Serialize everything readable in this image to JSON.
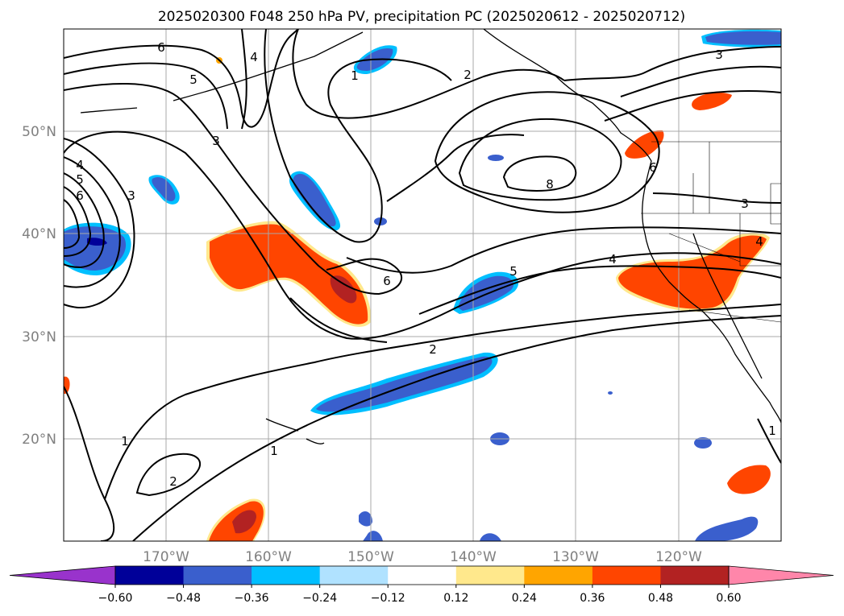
{
  "title": "2025020300 F048 250 hPa PV, precipitation PC (2025020612 - 2025020712)",
  "map": {
    "lon_labels": [
      "170°W",
      "160°W",
      "150°W",
      "140°W",
      "130°W",
      "120°W"
    ],
    "lat_labels": [
      "50°N",
      "40°N",
      "30°N",
      "20°N"
    ],
    "gridlines": true,
    "contour_labels": [
      {
        "text": "6"
      },
      {
        "text": "4"
      },
      {
        "text": "5"
      },
      {
        "text": "1"
      },
      {
        "text": "2"
      },
      {
        "text": "3"
      },
      {
        "text": "3"
      },
      {
        "text": "4"
      },
      {
        "text": "5"
      },
      {
        "text": "6"
      },
      {
        "text": "3"
      },
      {
        "text": "8"
      },
      {
        "text": "6"
      },
      {
        "text": "3"
      },
      {
        "text": "4"
      },
      {
        "text": "4"
      },
      {
        "text": "6"
      },
      {
        "text": "5"
      },
      {
        "text": "2"
      },
      {
        "text": "1"
      },
      {
        "text": "1"
      },
      {
        "text": "2"
      },
      {
        "text": "1"
      }
    ]
  },
  "colorbar": {
    "tick_labels": [
      "−0.60",
      "−0.48",
      "−0.36",
      "−0.24",
      "−0.12",
      "0.12",
      "0.24",
      "0.36",
      "0.48",
      "0.60"
    ],
    "colors": [
      "#9933cc",
      "#000099",
      "#3a5fcd",
      "#00bfff",
      "#b0e2ff",
      "#ffffff",
      "#ffe88c",
      "#ffa500",
      "#ff4500",
      "#b22222",
      "#ff86aa",
      "#ff86aa"
    ]
  }
}
